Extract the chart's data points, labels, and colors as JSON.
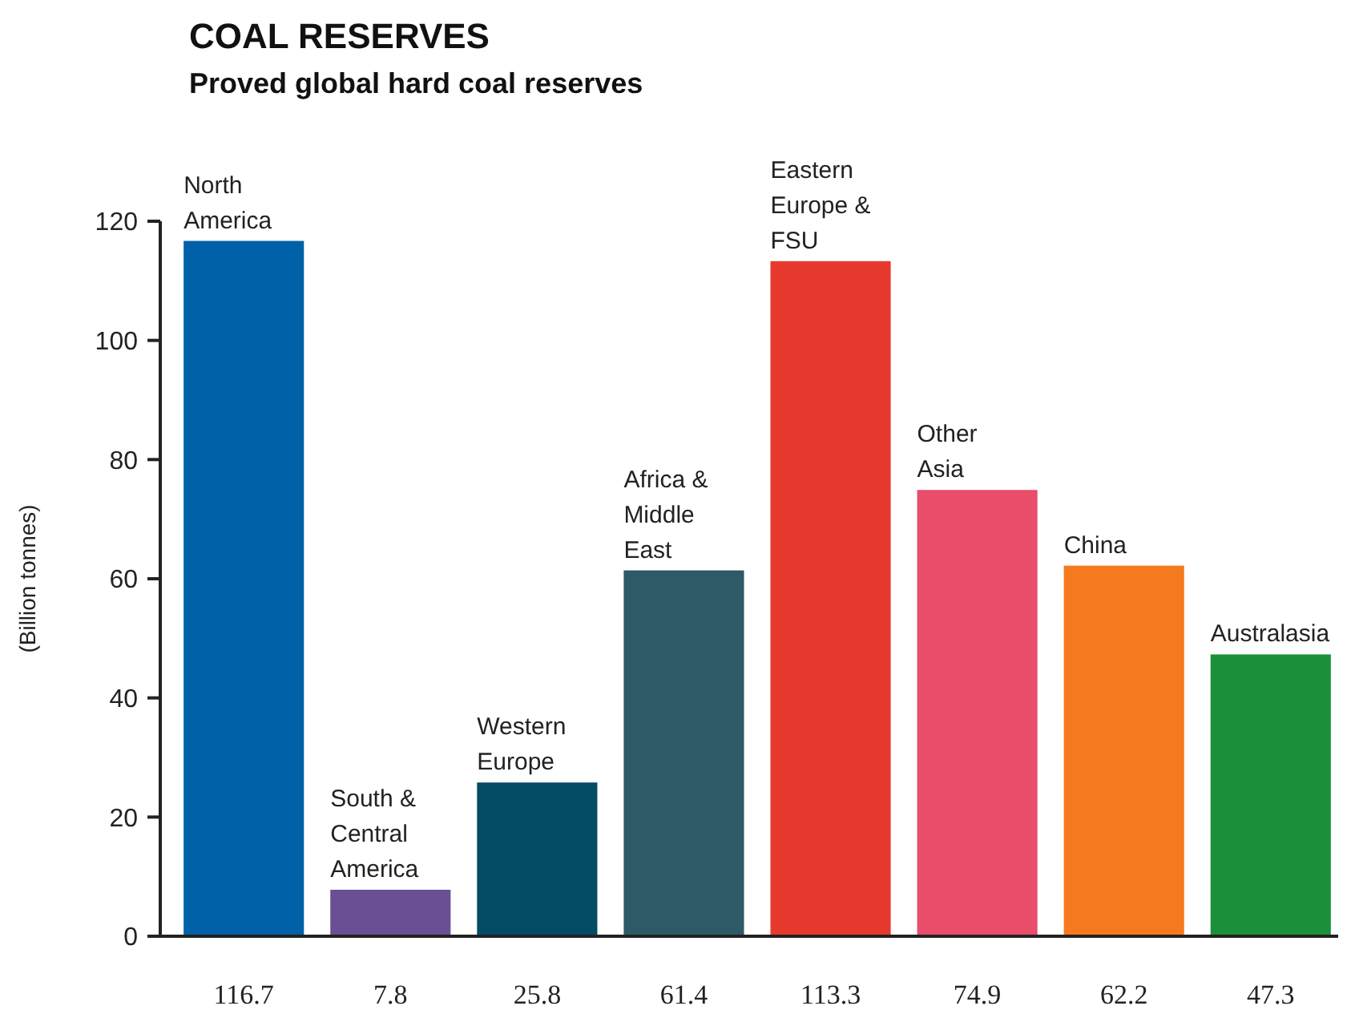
{
  "chart_data": {
    "type": "bar",
    "title": "COAL RESERVES",
    "subtitle": "Proved global hard coal reserves",
    "ylabel": "(Billion tonnes)",
    "categories": [
      "North America",
      "South & Central America",
      "Western Europe",
      "Africa & Middle East",
      "Eastern Europe & FSU",
      "Other Asia",
      "China",
      "Australasia"
    ],
    "values": [
      116.7,
      7.8,
      25.8,
      61.4,
      113.3,
      74.9,
      62.2,
      47.3
    ],
    "colors": [
      "#0061a8",
      "#6b4f94",
      "#034a64",
      "#2e5966",
      "#e8392e",
      "#e84d6a",
      "#f57a1f",
      "#1b8f3a"
    ],
    "ylim": [
      0,
      120
    ],
    "yticks": [
      0,
      20,
      40,
      60,
      80,
      100,
      120
    ],
    "data_labels": true
  }
}
